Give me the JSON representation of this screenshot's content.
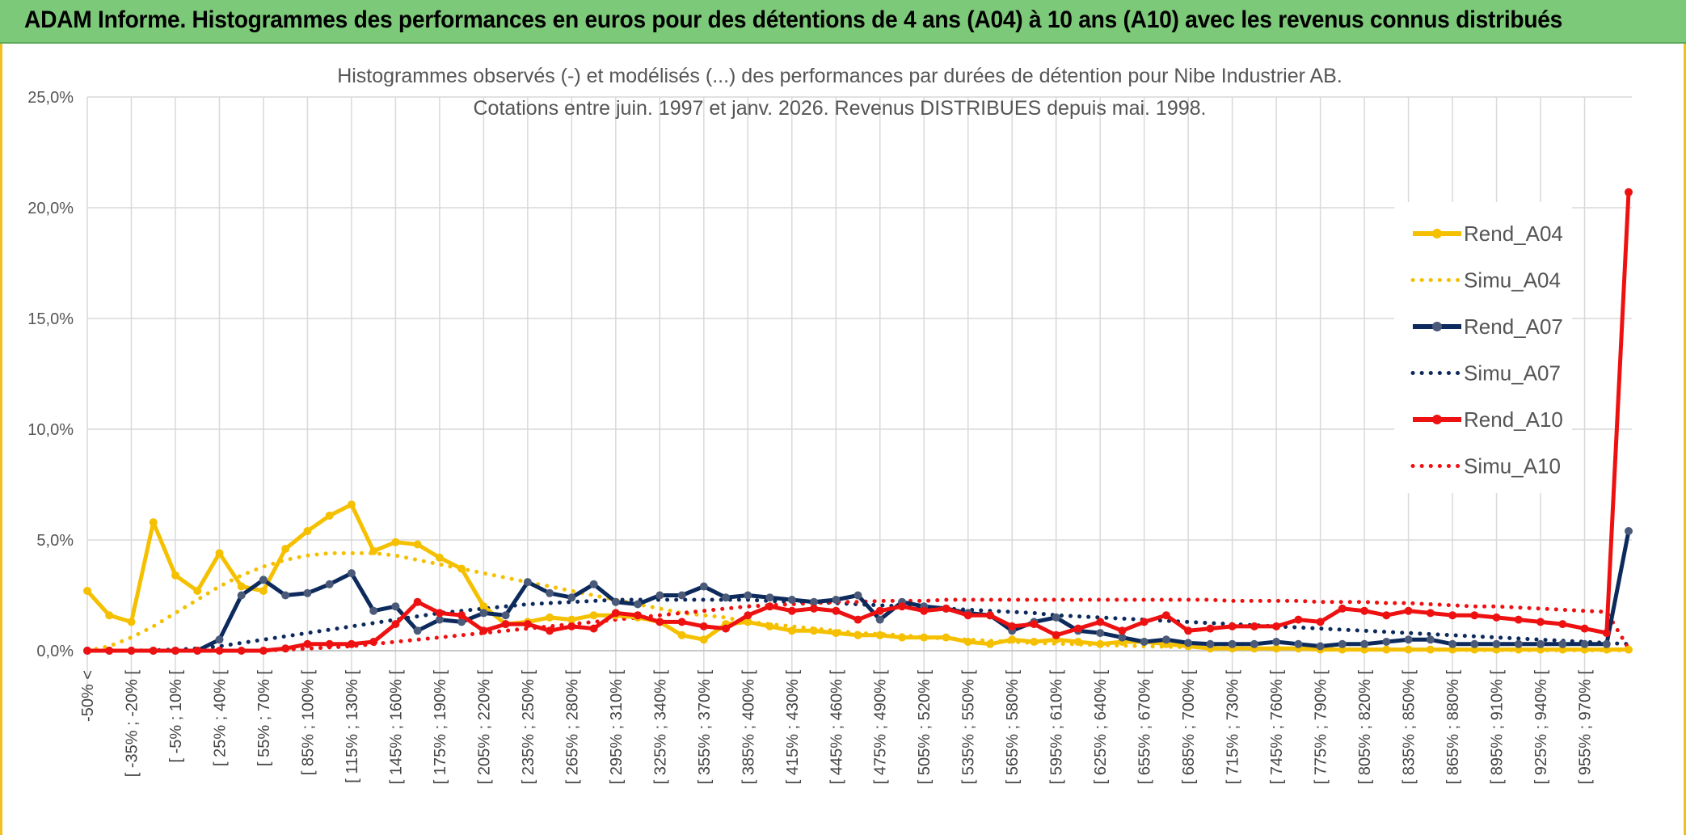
{
  "banner": {
    "title": "ADAM Informe. Histogrammes des performances en euros pour des détentions de 4 ans (A04) à 10 ans (A10) avec les revenus connus distribués"
  },
  "chart_data": {
    "type": "line",
    "title_line1": "Histogrammes observés (-) et modélisés (...) des performances par durées de détention pour Nibe Industrier AB.",
    "title_line2": "Cotations entre juin. 1997 et janv. 2026. Revenus DISTRIBUES depuis mai. 1998.",
    "y_ticks": [
      "0,0%",
      "5,0%",
      "10,0%",
      "15,0%",
      "20,0%",
      "25,0%"
    ],
    "ylim": [
      0,
      25
    ],
    "category_labels": [
      "-50% <",
      "[ -35% ; -20% [",
      "[ -5% ; 10% [",
      "[ 25% ; 40% [",
      "[ 55% ; 70% [",
      "[ 85% ; 100% [",
      "[ 115% ; 130% [",
      "[ 145% ; 160% [",
      "[ 175% ; 190% [",
      "[ 205% ; 220% [",
      "[ 235% ; 250% [",
      "[ 265% ; 280% [",
      "[ 295% ; 310% [",
      "[ 325% ; 340% [",
      "[ 355% ; 370% [",
      "[ 385% ; 400% [",
      "[ 415% ; 430% [",
      "[ 445% ; 460% [",
      "[ 475% ; 490% [",
      "[ 505% ; 520% [",
      "[ 535% ; 550% [",
      "[ 565% ; 580% [",
      "[ 595% ; 610% [",
      "[ 625% ; 640% [",
      "[ 655% ; 670% [",
      "[ 685% ; 700% [",
      "[ 715% ; 730% [",
      "[ 745% ; 760% [",
      "[ 775% ; 790% [",
      "[ 805% ; 820% [",
      "[ 835% ; 850% [",
      "[ 865% ; 880% [",
      "[ 895% ; 910% [",
      "[ 925% ; 940% [",
      "[ 955% ; 970% ["
    ],
    "n_points": 71,
    "series": [
      {
        "name": "Rend_A04",
        "color": "#f5c000",
        "style": "solid",
        "markers": true,
        "values": [
          2.7,
          1.6,
          1.3,
          5.8,
          3.4,
          2.7,
          4.4,
          2.9,
          2.7,
          4.6,
          5.4,
          6.1,
          6.6,
          4.5,
          4.9,
          4.8,
          4.2,
          3.7,
          2.0,
          1.2,
          1.3,
          1.5,
          1.4,
          1.6,
          1.6,
          1.5,
          1.3,
          0.7,
          0.5,
          1.2,
          1.3,
          1.1,
          0.9,
          0.9,
          0.8,
          0.7,
          0.7,
          0.6,
          0.6,
          0.6,
          0.4,
          0.3,
          0.5,
          0.4,
          0.5,
          0.4,
          0.3,
          0.4,
          0.4,
          0.3,
          0.2,
          0.1,
          0.1,
          0.1,
          0.1,
          0.1,
          0.05,
          0.05,
          0.05,
          0.05,
          0.05,
          0.05,
          0.05,
          0.05,
          0.05,
          0.05,
          0.05,
          0.05,
          0.05,
          0.05,
          0.05
        ]
      },
      {
        "name": "Simu_A04",
        "color": "#f5c000",
        "style": "dotted",
        "markers": false,
        "values": [
          0.0,
          0.2,
          0.6,
          1.1,
          1.7,
          2.3,
          2.9,
          3.4,
          3.8,
          4.1,
          4.3,
          4.4,
          4.4,
          4.4,
          4.3,
          4.1,
          3.9,
          3.7,
          3.5,
          3.3,
          3.1,
          2.9,
          2.7,
          2.5,
          2.3,
          2.1,
          1.9,
          1.7,
          1.6,
          1.5,
          1.3,
          1.2,
          1.1,
          1.0,
          0.9,
          0.8,
          0.75,
          0.7,
          0.6,
          0.55,
          0.5,
          0.45,
          0.4,
          0.35,
          0.32,
          0.29,
          0.26,
          0.23,
          0.2,
          0.18,
          0.16,
          0.14,
          0.12,
          0.11,
          0.1,
          0.09,
          0.08,
          0.07,
          0.06,
          0.05,
          0.05,
          0.04,
          0.04,
          0.03,
          0.03,
          0.03,
          0.02,
          0.02,
          0.02,
          0.02,
          0.02
        ]
      },
      {
        "name": "Rend_A07",
        "color": "#0d2a5c",
        "style": "solid",
        "markers": true,
        "values": [
          0,
          0,
          0,
          0,
          0,
          0,
          0.5,
          2.5,
          3.2,
          2.5,
          2.6,
          3.0,
          3.5,
          1.8,
          2.0,
          0.9,
          1.4,
          1.3,
          1.7,
          1.6,
          3.1,
          2.6,
          2.4,
          3.0,
          2.2,
          2.1,
          2.5,
          2.5,
          2.9,
          2.4,
          2.5,
          2.4,
          2.3,
          2.2,
          2.3,
          2.5,
          1.4,
          2.2,
          2.0,
          1.9,
          1.7,
          1.6,
          0.9,
          1.3,
          1.5,
          0.9,
          0.8,
          0.6,
          0.4,
          0.5,
          0.35,
          0.3,
          0.3,
          0.3,
          0.4,
          0.3,
          0.2,
          0.3,
          0.3,
          0.4,
          0.5,
          0.5,
          0.3,
          0.3,
          0.3,
          0.3,
          0.3,
          0.3,
          0.3,
          0.3,
          5.4
        ]
      },
      {
        "name": "Simu_A07",
        "color": "#0d2a5c",
        "style": "dotted",
        "markers": false,
        "values": [
          0,
          0,
          0,
          0.02,
          0.05,
          0.1,
          0.2,
          0.35,
          0.5,
          0.65,
          0.8,
          0.95,
          1.1,
          1.25,
          1.4,
          1.55,
          1.7,
          1.8,
          1.9,
          2.0,
          2.1,
          2.15,
          2.2,
          2.25,
          2.3,
          2.3,
          2.3,
          2.3,
          2.3,
          2.3,
          2.3,
          2.25,
          2.2,
          2.2,
          2.15,
          2.1,
          2.05,
          2.0,
          1.95,
          1.9,
          1.85,
          1.8,
          1.75,
          1.7,
          1.6,
          1.55,
          1.5,
          1.45,
          1.4,
          1.35,
          1.3,
          1.25,
          1.2,
          1.15,
          1.1,
          1.05,
          1.0,
          0.95,
          0.9,
          0.85,
          0.8,
          0.75,
          0.7,
          0.65,
          0.6,
          0.55,
          0.5,
          0.45,
          0.4,
          0.35,
          0.3
        ]
      },
      {
        "name": "Rend_A10",
        "color": "#ee1111",
        "style": "solid",
        "markers": true,
        "values": [
          0,
          0,
          0,
          0,
          0,
          0,
          0,
          0,
          0,
          0.1,
          0.3,
          0.3,
          0.3,
          0.4,
          1.2,
          2.2,
          1.7,
          1.6,
          0.9,
          1.2,
          1.2,
          0.9,
          1.1,
          1.0,
          1.7,
          1.6,
          1.3,
          1.3,
          1.1,
          1.0,
          1.6,
          2.0,
          1.8,
          1.9,
          1.8,
          1.4,
          1.8,
          2.0,
          1.8,
          1.9,
          1.6,
          1.6,
          1.1,
          1.2,
          0.7,
          1.0,
          1.3,
          0.9,
          1.3,
          1.6,
          0.9,
          1.0,
          1.1,
          1.1,
          1.1,
          1.4,
          1.3,
          1.9,
          1.8,
          1.6,
          1.8,
          1.7,
          1.6,
          1.6,
          1.5,
          1.4,
          1.3,
          1.2,
          1.0,
          0.8,
          20.7
        ]
      },
      {
        "name": "Simu_A10",
        "color": "#ee1111",
        "style": "dotted",
        "markers": false,
        "values": [
          0,
          0,
          0,
          0,
          0,
          0,
          0,
          0,
          0,
          0.05,
          0.1,
          0.15,
          0.2,
          0.3,
          0.4,
          0.5,
          0.6,
          0.7,
          0.8,
          0.9,
          1.0,
          1.1,
          1.2,
          1.3,
          1.4,
          1.5,
          1.6,
          1.7,
          1.8,
          1.9,
          2.0,
          2.05,
          2.1,
          2.15,
          2.2,
          2.2,
          2.25,
          2.25,
          2.25,
          2.3,
          2.3,
          2.3,
          2.3,
          2.3,
          2.3,
          2.3,
          2.3,
          2.3,
          2.3,
          2.3,
          2.3,
          2.3,
          2.25,
          2.25,
          2.25,
          2.25,
          2.2,
          2.2,
          2.2,
          2.15,
          2.15,
          2.1,
          2.05,
          2.0,
          2.0,
          1.95,
          1.9,
          1.85,
          1.8,
          1.75,
          0.1
        ]
      }
    ],
    "legend_position": "top-right"
  }
}
